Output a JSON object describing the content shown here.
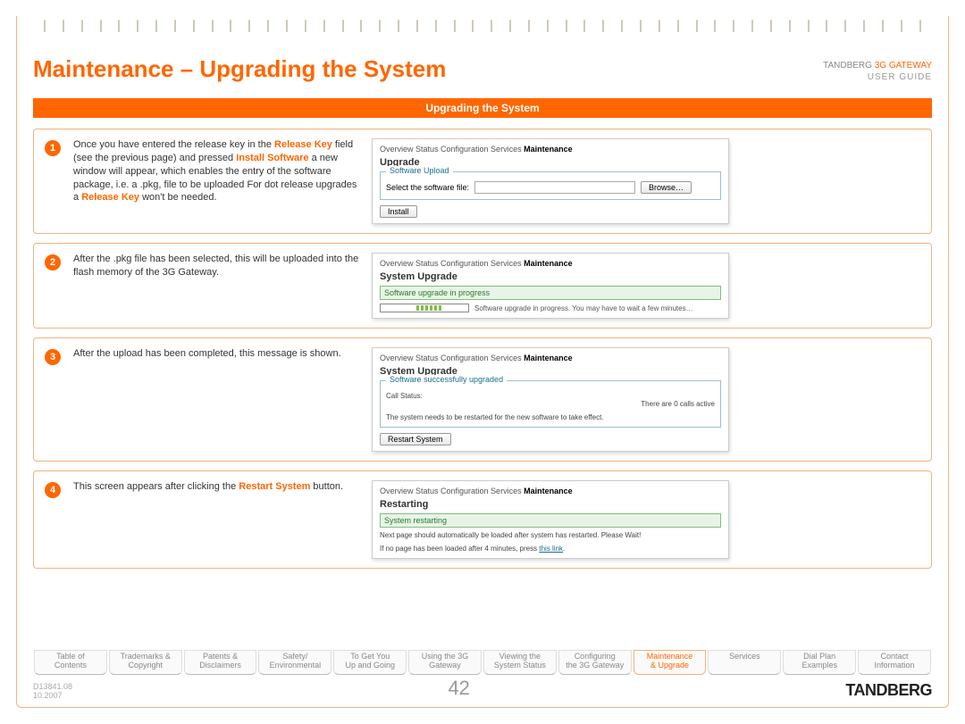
{
  "header": {
    "title": "Maintenance – Upgrading the System",
    "brand_top_grey": "TANDBERG ",
    "brand_top_orange": "3G GATEWAY",
    "brand_bottom": "USER GUIDE"
  },
  "section_bar": "Upgrading the System",
  "steps": [
    {
      "n": "1",
      "desc_html": "Once you have entered the release key in the <span class='hl-orange'>Release Key</span> field (see the previous page) and pressed <span class='hl-orange'>Install Software</span> a new window will appear, which enables the entry of the software package, i.e. a .pkg, file to be uploaded For dot release upgrades a <span class='hl-orange'>Release Key</span> won't be needed.",
      "panel": {
        "tabs": "Overview   Status   Configuration   Services   ",
        "active_tab": "Maintenance",
        "title": "Upgrade",
        "legend": "Software Upload",
        "body": "Select the software file:",
        "browse": "Browse…",
        "install": "Install"
      }
    },
    {
      "n": "2",
      "desc_html": "After the .pkg file has been selected, this will be uploaded into the flash memory of the 3G Gateway.",
      "panel": {
        "tabs": "Overview   Status   Configuration   Services   ",
        "active_tab": "Maintenance",
        "title": "System Upgrade",
        "progress_label": "Software upgrade in progress",
        "progress_text": "Software upgrade in progress. You may have to wait a few minutes…"
      }
    },
    {
      "n": "3",
      "desc_html": "After the upload has been completed, this message is shown.",
      "panel": {
        "tabs": "Overview   Status   Configuration   Services   ",
        "active_tab": "Maintenance",
        "title": "System Upgrade",
        "success_label": "Software successfully upgraded",
        "call_status_label": "Call Status:",
        "call_status_value": "There are 0 calls active",
        "restart_hint": "The system needs to be restarted for the new software to take effect.",
        "restart_btn": "Restart System"
      }
    },
    {
      "n": "4",
      "desc_html": "This screen appears after clicking the <span class='hl-orange'>Restart System</span> button.",
      "panel": {
        "tabs": "Overview   Status   Configuration   Services   ",
        "active_tab": "Maintenance",
        "title": "Restarting",
        "restarting_label": "System restarting",
        "restarting_text": "Next page should automatically be loaded after system has restarted. Please Wait!",
        "link_hint_pre": "If no page has been loaded after 4 minutes, press ",
        "link_text": "this link",
        "link_hint_post": "."
      }
    }
  ],
  "nav": [
    {
      "l1": "Table of",
      "l2": "Contents"
    },
    {
      "l1": "Trademarks &",
      "l2": "Copyright"
    },
    {
      "l1": "Patents &",
      "l2": "Disclaimers"
    },
    {
      "l1": "Safety/",
      "l2": "Environmental"
    },
    {
      "l1": "To Get You",
      "l2": "Up and Going"
    },
    {
      "l1": "Using the 3G",
      "l2": "Gateway"
    },
    {
      "l1": "Viewing the",
      "l2": "System Status"
    },
    {
      "l1": "Configuring",
      "l2": "the 3G Gateway"
    },
    {
      "l1": "Maintenance",
      "l2": "& Upgrade",
      "active": true
    },
    {
      "l1": "Services",
      "l2": ""
    },
    {
      "l1": "Dial Plan",
      "l2": "Examples"
    },
    {
      "l1": "Contact",
      "l2": "Information"
    }
  ],
  "footer": {
    "doc_id": "D13841.08",
    "date": "10.2007",
    "page": "42",
    "logo": "TANDBERG"
  },
  "colors": {
    "accent": "#ff6600",
    "border": "#f5b27a"
  }
}
